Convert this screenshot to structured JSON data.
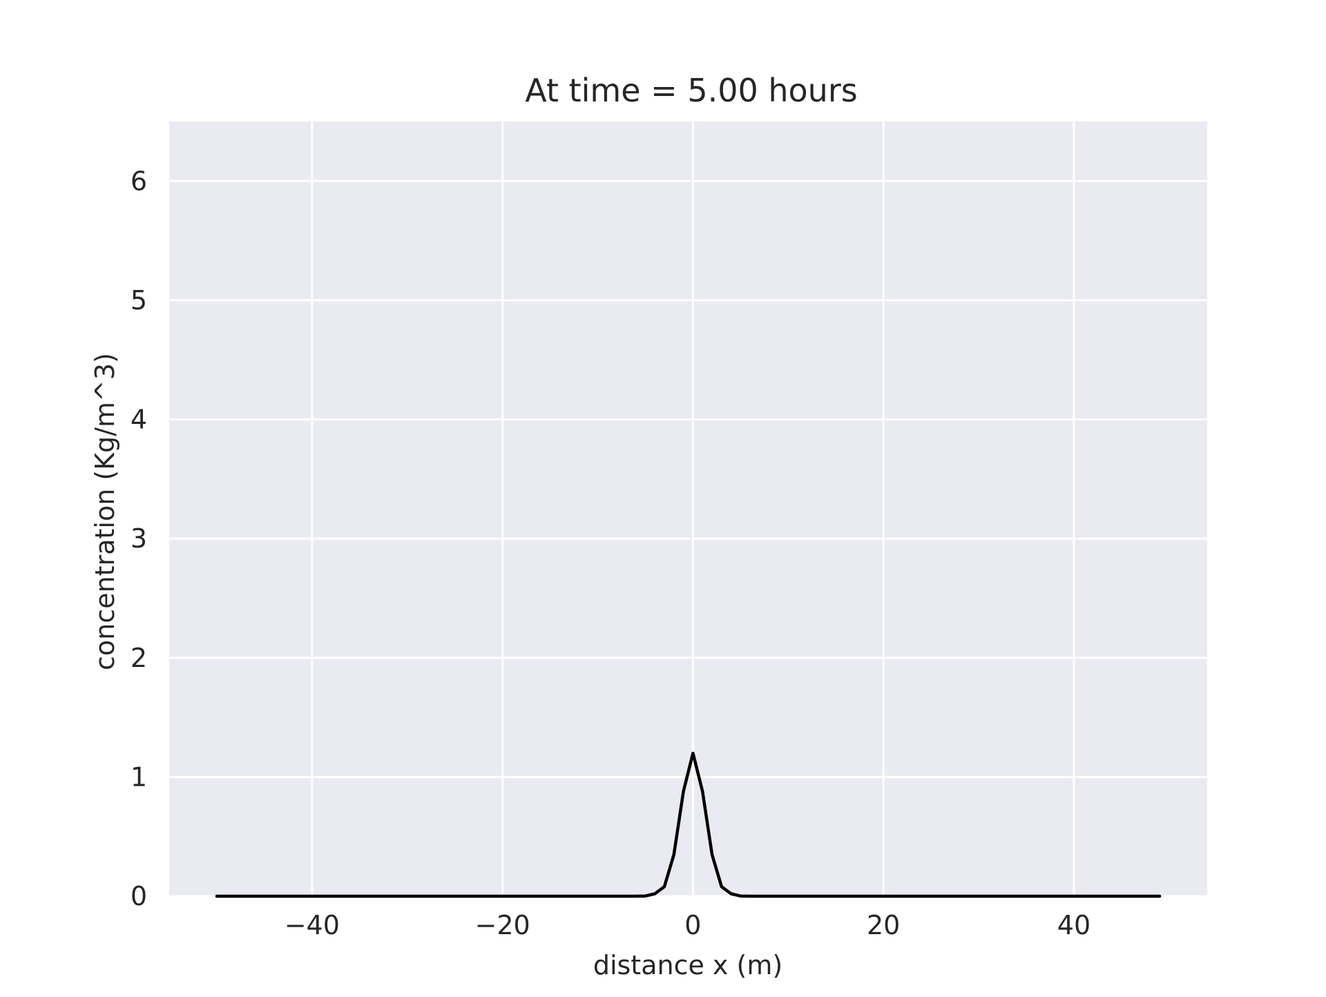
{
  "chart_data": {
    "type": "line",
    "title": "At time = 5.00 hours",
    "xlabel": "distance x (m)",
    "ylabel": "concentration (Kg/m^3)",
    "xlim": [
      -55,
      54
    ],
    "ylim": [
      0,
      6.5
    ],
    "xticks": [
      -40,
      -20,
      0,
      20,
      40
    ],
    "yticks": [
      0,
      1,
      2,
      3,
      4,
      5,
      6
    ],
    "xtick_labels": [
      "−40",
      "−20",
      "0",
      "20",
      "40"
    ],
    "ytick_labels": [
      "0",
      "1",
      "2",
      "3",
      "4",
      "5",
      "6"
    ],
    "grid": true,
    "legend": "none",
    "series": [
      {
        "color": "#000000",
        "x": [
          -50,
          -6,
          -5,
          -4,
          -3,
          -2,
          -1,
          0,
          1,
          2,
          3,
          4,
          5,
          6,
          49
        ],
        "y": [
          0,
          0,
          0.002,
          0.02,
          0.08,
          0.35,
          0.88,
          1.2,
          0.88,
          0.35,
          0.08,
          0.02,
          0.002,
          0,
          0
        ]
      }
    ]
  },
  "style": {
    "plot_background": "#EAEAF2",
    "grid_color": "#FFFFFF",
    "line_color": "#000000",
    "text_color": "#262626"
  }
}
